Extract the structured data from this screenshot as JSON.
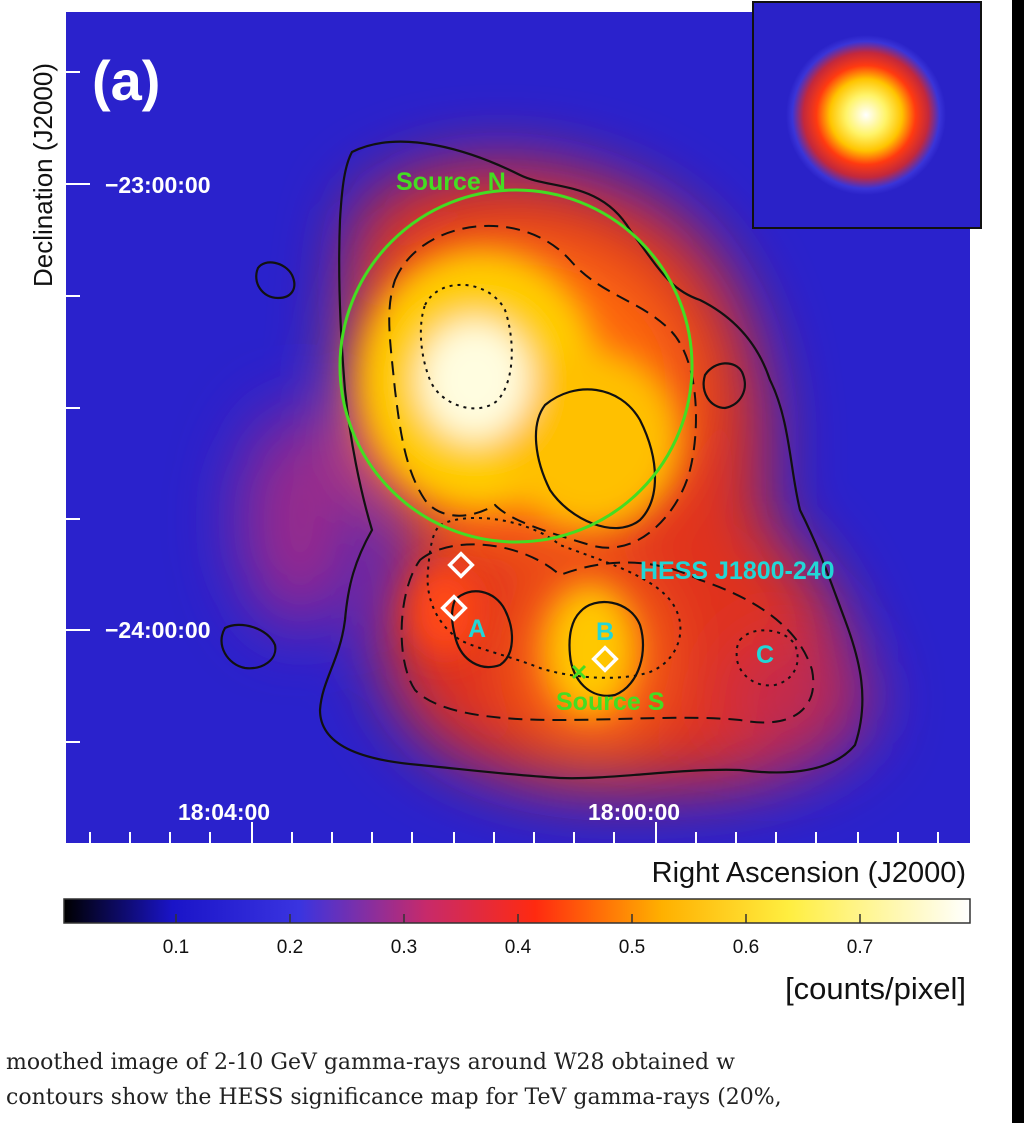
{
  "figure": {
    "panel_label": "(a)",
    "y_axis_title": "Declination (J2000)",
    "x_axis_title": "Right Ascension (J2000)",
    "dec_labels": [
      {
        "text": "−23:00:00"
      },
      {
        "text": "−24:00:00"
      }
    ],
    "ra_labels": [
      {
        "text": "18:04:00"
      },
      {
        "text": "18:00:00"
      }
    ],
    "sources": {
      "source_n": "Source N",
      "source_s": "Source S",
      "hess": "HESS J1800-240",
      "a": "A",
      "b": "B",
      "c": "C"
    },
    "colors": {
      "green": "#44dd22",
      "cyan": "#22d6d6",
      "white": "#ffffff",
      "contour": "#111111"
    },
    "colorbar": {
      "ticks": [
        "0.1",
        "0.2",
        "0.3",
        "0.4",
        "0.5",
        "0.6",
        "0.7"
      ],
      "unit": "[counts/pixel]",
      "stops": [
        "#000000",
        "#1a14c8",
        "#3a34e0",
        "#c72a2a",
        "#ff3a10",
        "#ffd400",
        "#fff76a",
        "#ffffff"
      ]
    }
  },
  "caption": {
    "line1": "moothed image of 2-10 GeV gamma-rays around W28 obtained w",
    "line2": "contours show the HESS significance map for TeV gamma-rays (20%,"
  }
}
